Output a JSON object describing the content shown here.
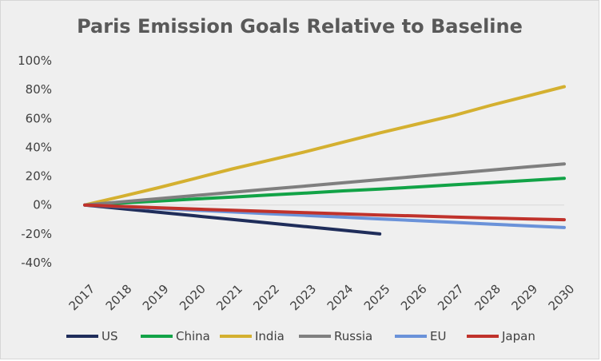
{
  "chart_data": {
    "type": "line",
    "title": "Paris Emission Goals Relative to Baseline",
    "xlabel": "",
    "ylabel": "",
    "x": [
      "2017",
      "2018",
      "2019",
      "2020",
      "2021",
      "2022",
      "2023",
      "2024",
      "2025",
      "2026",
      "2027",
      "2028",
      "2029",
      "2030"
    ],
    "ylim": [
      -40,
      100
    ],
    "yticks": [
      "100%",
      "80%",
      "60%",
      "40%",
      "20%",
      "0%",
      "-20%",
      "-40%"
    ],
    "yticks_values": [
      100,
      80,
      60,
      40,
      20,
      0,
      -20,
      -40
    ],
    "grid": false,
    "legend_position": "bottom",
    "series": [
      {
        "name": "US",
        "color": "#1f2d5a",
        "values": [
          0,
          -2.5,
          -5,
          -7.5,
          -10,
          -12.5,
          -15,
          -17.5,
          -20,
          null,
          null,
          null,
          null,
          null
        ]
      },
      {
        "name": "China",
        "color": "#12a347",
        "values": [
          0,
          1.4,
          2.8,
          4.2,
          5.5,
          7,
          8.3,
          9.8,
          11,
          12.5,
          14,
          15.5,
          17,
          18.5
        ]
      },
      {
        "name": "India",
        "color": "#d4b030",
        "values": [
          0,
          6,
          12,
          18.5,
          25,
          31,
          37,
          43.5,
          50,
          56,
          62,
          69,
          75.5,
          82
        ]
      },
      {
        "name": "Russia",
        "color": "#7f7f7f",
        "values": [
          0,
          2.2,
          4.4,
          6.6,
          8.8,
          11,
          13.2,
          15.4,
          17.6,
          19.8,
          22,
          24.2,
          26.4,
          28.5
        ]
      },
      {
        "name": "EU",
        "color": "#6a92d9",
        "values": [
          0,
          -1.2,
          -2.4,
          -3.6,
          -4.8,
          -6,
          -7.2,
          -8.4,
          -9.6,
          -10.8,
          -12,
          -13.2,
          -14.4,
          -15.6
        ]
      },
      {
        "name": "Japan",
        "color": "#c0322b",
        "values": [
          0,
          -1,
          -1.9,
          -2.8,
          -3.6,
          -4.4,
          -5.3,
          -6.1,
          -6.9,
          -7.6,
          -8.3,
          -9,
          -9.6,
          -10.2
        ]
      }
    ]
  }
}
